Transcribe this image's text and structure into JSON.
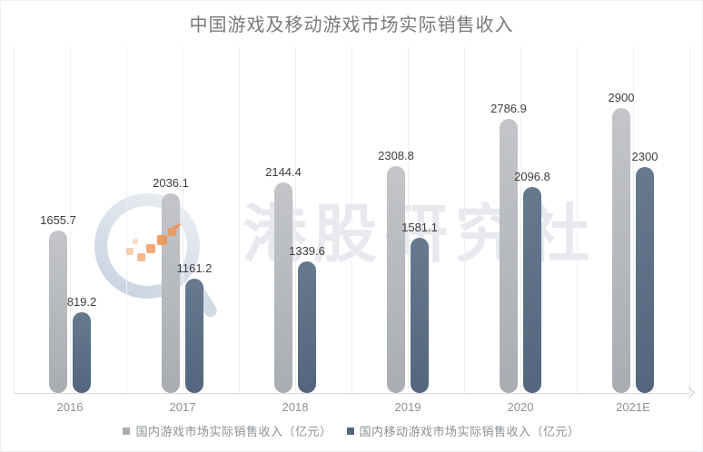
{
  "chart_data": {
    "type": "bar",
    "title": "中国游戏及移动游戏市场实际销售收入",
    "categories": [
      "2016",
      "2017",
      "2018",
      "2019",
      "2020",
      "2021E"
    ],
    "series": [
      {
        "name": "国内游戏市场实际销售收入（亿元）",
        "color": "#a9adb2",
        "color_top": "#c3c5c8",
        "values": [
          1655.7,
          2036.1,
          2144.4,
          2308.8,
          2786.9,
          2900
        ]
      },
      {
        "name": "国内移动游戏市场实际销售收入（亿元）",
        "color": "#53667d",
        "color_top": "#67798f",
        "values": [
          819.2,
          1161.2,
          1339.6,
          1581.1,
          2096.8,
          2300
        ]
      }
    ],
    "value_labels": true,
    "grid": "vertical-only",
    "legend_position": "bottom",
    "xlabel": "",
    "ylabel": "",
    "ylim": [
      0,
      2968
    ]
  },
  "watermark": {
    "text": "港股研究社",
    "logo": "hkstock-research-logo",
    "accent_color": "#ef9454"
  },
  "colors": {
    "title": "#7a7a7a",
    "value_label": "#3d3d3d",
    "axis_label": "#8b9196",
    "legend_text": "#8b9196",
    "gridline": "#eeeff1",
    "axis_line": "#d6d9dc",
    "watermark_gray": "#e7e9ee"
  }
}
